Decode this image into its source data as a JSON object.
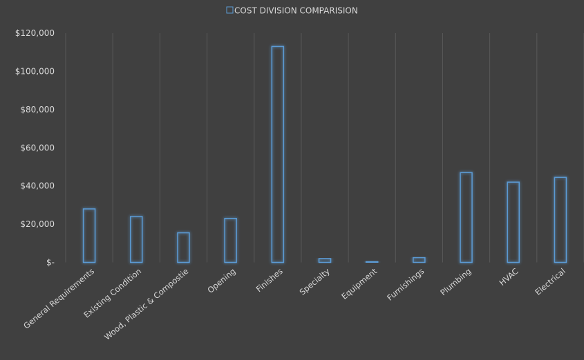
{
  "chart_data": {
    "type": "bar",
    "title": "",
    "legend": {
      "label": "COST DIVISION COMPARISION",
      "position": "top"
    },
    "categories": [
      "General Requirements",
      "Existing Condition",
      "Wood, Plastic & Compostie",
      "Opening",
      "Finishes",
      "Specialty",
      "Equipment",
      "Furnishings",
      "Plumbing",
      "HVAC",
      "Electrical"
    ],
    "series": [
      {
        "name": "COST DIVISION COMPARISION",
        "values": [
          28000,
          24000,
          15500,
          23000,
          113000,
          2000,
          500,
          2500,
          47000,
          42000,
          44500
        ]
      }
    ],
    "ylim": [
      0,
      120000
    ],
    "yticks": [
      0,
      20000,
      40000,
      60000,
      80000,
      100000,
      120000
    ],
    "ytick_labels": [
      "$-",
      "$20,000",
      "$40,000",
      "$60,000",
      "$80,000",
      "$100,000",
      "$120,000"
    ],
    "grid": {
      "vertical": true,
      "horizontal": false
    },
    "colors": {
      "background": "#404040",
      "bar_stroke": "#5b9bd5",
      "bar_glow": "#5b9bd5",
      "grid": "#595959",
      "text": "#d9d9d9"
    }
  }
}
